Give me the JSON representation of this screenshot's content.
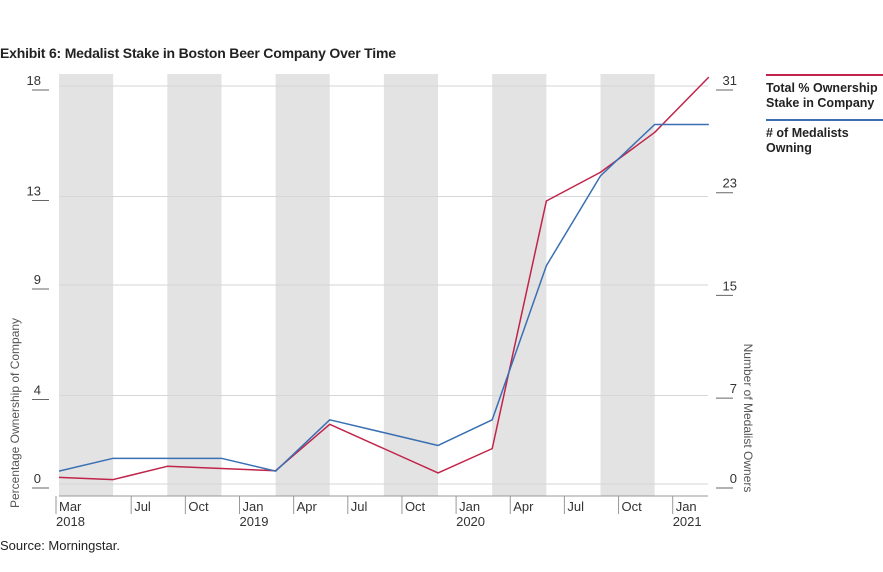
{
  "title": "Exhibit 6: Medalist Stake in Boston Beer Company Over Time",
  "source": "Source: Morningstar.",
  "colors": {
    "pct": "#c1244a",
    "owners": "#3a6fb3",
    "band": "#e3e3e3",
    "grid": "#d6d6d6"
  },
  "legend": [
    {
      "label": "Total % Ownership Stake in Company",
      "color": "#c1244a"
    },
    {
      "label": "# of Medalists Owning",
      "color": "#3a6fb3"
    }
  ],
  "chart_data": {
    "type": "line",
    "title": "Exhibit 6: Medalist Stake in Boston Beer Company Over Time",
    "xlabel": "",
    "ylabel": "Percentage Ownership of Company",
    "y2label": "Number of Medalist Owners",
    "x_ticks": [
      {
        "month": "Mar",
        "year": "2018"
      },
      {
        "month": "Jul",
        "year": ""
      },
      {
        "month": "Oct",
        "year": ""
      },
      {
        "month": "Jan",
        "year": "2019"
      },
      {
        "month": "Apr",
        "year": ""
      },
      {
        "month": "Jul",
        "year": ""
      },
      {
        "month": "Oct",
        "year": ""
      },
      {
        "month": "Jan",
        "year": "2020"
      },
      {
        "month": "Apr",
        "year": ""
      },
      {
        "month": "Jul",
        "year": ""
      },
      {
        "month": "Oct",
        "year": ""
      },
      {
        "month": "Jan",
        "year": "2021"
      }
    ],
    "y_ticks": [
      "0",
      "4",
      "9",
      "13",
      "18"
    ],
    "y2_ticks": [
      "0",
      "7",
      "15",
      "23",
      "31"
    ],
    "ylim": [
      0,
      18
    ],
    "y2lim": [
      0,
      31
    ],
    "grid": true,
    "legend_position": "right",
    "series": [
      {
        "name": "Total % Ownership Stake in Company",
        "axis": "left",
        "x": [
          "Mar 2018",
          "Jun 2018",
          "Sep 2018",
          "Dec 2018",
          "Mar 2019",
          "Jun 2019",
          "Sep 2019",
          "Dec 2019",
          "Mar 2020",
          "Jun 2020",
          "Sep 2020",
          "Dec 2020",
          "Mar 2021"
        ],
        "values": [
          0.3,
          0.2,
          0.8,
          0.7,
          0.6,
          2.7,
          1.6,
          0.5,
          1.6,
          12.8,
          14.1,
          15.9,
          18.4
        ]
      },
      {
        "name": "# of Medalists Owning",
        "axis": "right",
        "x": [
          "Mar 2018",
          "Jun 2018",
          "Sep 2018",
          "Dec 2018",
          "Mar 2019",
          "Jun 2019",
          "Sep 2019",
          "Dec 2019",
          "Mar 2020",
          "Jun 2020",
          "Sep 2020",
          "Dec 2020",
          "Mar 2021"
        ],
        "values": [
          1,
          2,
          2,
          2,
          1,
          5,
          4,
          3,
          5,
          17,
          24,
          28,
          28
        ]
      }
    ]
  }
}
